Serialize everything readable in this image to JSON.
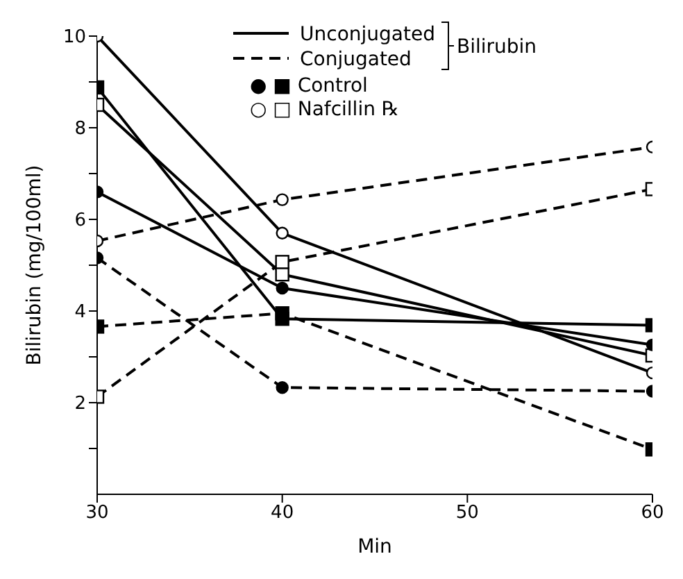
{
  "chart_data": {
    "type": "line",
    "xlabel": "Min",
    "ylabel": "Bilirubin (mg/100ml)",
    "x": [
      30,
      40,
      60
    ],
    "xlim": [
      30,
      60
    ],
    "xticks": [
      30,
      40,
      50,
      60
    ],
    "ylim": [
      0,
      10
    ],
    "yticks": [
      {
        "value": 1,
        "label": null
      },
      2,
      {
        "value": 3,
        "label": null
      },
      4,
      {
        "value": 5,
        "label": null
      },
      6,
      {
        "value": 7,
        "label": null
      },
      8,
      {
        "value": 9,
        "label": null
      },
      10
    ],
    "annotations": [
      "Unconjugated",
      "Conjugated",
      "Bilirubin",
      "● ■ Control",
      "○ □ Nafcillin ℞"
    ],
    "series": [
      {
        "color": "#000000",
        "line_style": "solid",
        "marker": "circle",
        "colors": [
          "#ffffff",
          "#ffffff",
          "#ffffff"
        ],
        "values": [
          10,
          5.7,
          2.65
        ]
      },
      {
        "color": "#000000",
        "line_style": "solid",
        "marker": "square",
        "colors": [
          "#000000",
          "#000000",
          "#000000"
        ],
        "values": [
          8.88,
          3.83,
          3.69
        ]
      },
      {
        "color": "#000000",
        "line_style": "solid",
        "marker": "square",
        "colors": [
          "#ffffff",
          "#ffffff",
          "#ffffff"
        ],
        "values": [
          8.5,
          4.8,
          3.03
        ]
      },
      {
        "color": "#000000",
        "line_style": "solid",
        "marker": "circle",
        "colors": [
          "#000000",
          "#000000",
          "#000000"
        ],
        "values": [
          6.6,
          4.5,
          3.26
        ]
      },
      {
        "color": "#000000",
        "line_style": "dashed",
        "marker": "circle",
        "colors": [
          "#ffffff",
          "#ffffff",
          "#ffffff"
        ],
        "values": [
          5.53,
          6.43,
          7.58
        ]
      },
      {
        "color": "#000000",
        "line_style": "dashed",
        "marker": "square",
        "colors": [
          "#ffffff",
          "#ffffff",
          "#ffffff"
        ],
        "values": [
          2.13,
          5.07,
          6.66
        ]
      },
      {
        "color": "#000000",
        "line_style": "dashed",
        "marker": "square",
        "colors": [
          "#000000",
          "#000000",
          "#000000"
        ],
        "values": [
          3.66,
          3.95,
          0.98
        ]
      },
      {
        "color": "#000000",
        "line_style": "dashed",
        "marker": "circle",
        "colors": [
          "#000000",
          "#000000",
          "#000000"
        ],
        "values": [
          5.16,
          2.33,
          2.25
        ]
      }
    ]
  }
}
